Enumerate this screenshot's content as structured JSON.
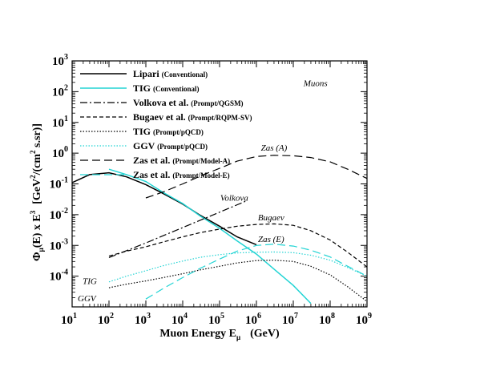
{
  "chart_data": {
    "type": "line",
    "title": "",
    "xlabel": {
      "main": "Muon Energy  E",
      "sub": "μ",
      "unit": "(GeV)"
    },
    "ylabel": {
      "phi": "Φ",
      "phisub": "μ",
      "mid": "(E) x E",
      "exp": "3",
      "unitA": "[GeV",
      "unitExp1": "2",
      "unitB": "/(cm",
      "unitExp2": "2",
      "unitC": " s.sr)]"
    },
    "xscale": "log",
    "yscale": "log",
    "xlim": [
      10,
      1000000000
    ],
    "ylim": [
      1e-05,
      1000
    ],
    "grid": false,
    "legend_position": "top-left",
    "x_ticks": [
      {
        "base": "10",
        "exp": "1",
        "value": 10
      },
      {
        "base": "10",
        "exp": "2",
        "value": 100
      },
      {
        "base": "10",
        "exp": "3",
        "value": 1000
      },
      {
        "base": "10",
        "exp": "4",
        "value": 10000
      },
      {
        "base": "10",
        "exp": "5",
        "value": 100000
      },
      {
        "base": "10",
        "exp": "6",
        "value": 1000000
      },
      {
        "base": "10",
        "exp": "7",
        "value": 10000000
      },
      {
        "base": "10",
        "exp": "8",
        "value": 100000000
      },
      {
        "base": "10",
        "exp": "9",
        "value": 1000000000
      }
    ],
    "y_ticks": [
      {
        "base": "10",
        "exp": "-4",
        "value": 0.0001
      },
      {
        "base": "10",
        "exp": "-3",
        "value": 0.001
      },
      {
        "base": "10",
        "exp": "-2",
        "value": 0.01
      },
      {
        "base": "10",
        "exp": "-1",
        "value": 0.1
      },
      {
        "base": "10",
        "exp": "0",
        "value": 1
      },
      {
        "base": "10",
        "exp": "1",
        "value": 10
      },
      {
        "base": "10",
        "exp": "2",
        "value": 100
      },
      {
        "base": "10",
        "exp": "3",
        "value": 1000
      }
    ],
    "annotations": [
      {
        "text": "Muons",
        "color": "#1a1acc",
        "x": 40000000,
        "y": 150
      },
      {
        "text": "Zas (A)",
        "color": "#000000",
        "x": 3000000,
        "y": 1.2
      },
      {
        "text": "Volkova",
        "color": "#000000",
        "x": 250000,
        "y": 0.028
      },
      {
        "text": "Bugaev",
        "color": "#000000",
        "x": 2500000,
        "y": 0.0065
      },
      {
        "text": "Zas (E)",
        "color": "#000000",
        "x": 2500000,
        "y": 0.0013
      },
      {
        "text": "TIG",
        "color": "#000000",
        "x": 30,
        "y": 5.5e-05
      },
      {
        "text": "GGV",
        "color": "#000000",
        "x": 25,
        "y": 1.5e-05
      }
    ],
    "series": [
      {
        "name": "Lipari",
        "tag": "(Conventional)",
        "color": "#000000",
        "dash": "",
        "width": 1.5,
        "x": [
          10,
          30,
          100,
          300,
          1000,
          3000,
          10000,
          30000,
          100000,
          300000,
          1000000
        ],
        "y": [
          0.11,
          0.2,
          0.23,
          0.17,
          0.095,
          0.048,
          0.022,
          0.0095,
          0.0042,
          0.0019,
          0.00105
        ]
      },
      {
        "name": "TIG",
        "tag": "(Conventional)",
        "color": "#22d4d4",
        "dash": "",
        "width": 1.5,
        "x": [
          100,
          300,
          1000,
          3000,
          10000,
          30000,
          100000,
          300000,
          1000000,
          3000000,
          10000000,
          30000000
        ],
        "y": [
          0.3,
          0.2,
          0.12,
          0.052,
          0.023,
          0.009,
          0.0036,
          0.0014,
          0.00052,
          0.00017,
          5e-05,
          1.3e-05
        ]
      },
      {
        "name": "Volkova et al.",
        "tag": "(Prompt/QGSM)",
        "color": "#000000",
        "dash": "9,3,2,3",
        "width": 1.2,
        "x": [
          100,
          1000,
          10000,
          100000,
          500000
        ],
        "y": [
          0.0004,
          0.0012,
          0.0038,
          0.012,
          0.027
        ]
      },
      {
        "name": "Bugaev et al.",
        "tag": "(Prompt/RQPM-SV)",
        "color": "#000000",
        "dash": "5,3",
        "width": 1.2,
        "x": [
          100,
          300,
          1000,
          3000,
          10000,
          30000,
          100000,
          300000,
          1000000,
          3000000,
          10000000,
          30000000,
          100000000,
          300000000,
          1000000000
        ],
        "y": [
          0.00045,
          0.00065,
          0.0009,
          0.0013,
          0.0019,
          0.0026,
          0.0034,
          0.0042,
          0.0048,
          0.005,
          0.0045,
          0.003,
          0.0015,
          0.0006,
          0.0002
        ]
      },
      {
        "name": "TIG",
        "tag": "(Prompt/pQCD)",
        "color": "#000000",
        "dash": "1.5,2",
        "width": 1.2,
        "x": [
          100,
          300,
          1000,
          3000,
          10000,
          30000,
          100000,
          300000,
          1000000,
          3000000,
          10000000,
          30000000,
          100000000,
          300000000,
          1000000000
        ],
        "y": [
          4.2e-05,
          5.5e-05,
          7e-05,
          9e-05,
          0.00012,
          0.00016,
          0.00021,
          0.00027,
          0.00032,
          0.00033,
          0.0003,
          0.00021,
          0.00011,
          4.5e-05,
          1.5e-05
        ]
      },
      {
        "name": "GGV",
        "tag": "(Prompt/pQCD)",
        "color": "#22d4d4",
        "dash": "1.5,2",
        "width": 1.2,
        "x": [
          100,
          300,
          1000,
          3000,
          10000,
          30000,
          100000,
          300000,
          1000000,
          3000000,
          10000000,
          30000000,
          100000000,
          300000000,
          1000000000
        ],
        "y": [
          6.5e-05,
          0.0001,
          0.00015,
          0.00022,
          0.00031,
          0.00041,
          0.0005,
          0.00057,
          0.0006,
          0.00061,
          0.00058,
          0.00048,
          0.00033,
          0.00019,
          0.0001
        ]
      },
      {
        "name": "Zas et al.",
        "tag": "(Prompt/Model-A)",
        "color": "#000000",
        "dash": "10,5",
        "width": 1.2,
        "x": [
          1000,
          3000,
          10000,
          30000,
          100000,
          300000,
          1000000,
          3000000,
          10000000,
          30000000,
          100000000,
          300000000,
          1000000000
        ],
        "y": [
          0.035,
          0.055,
          0.1,
          0.18,
          0.32,
          0.55,
          0.78,
          0.85,
          0.82,
          0.72,
          0.52,
          0.3,
          0.15
        ]
      },
      {
        "name": "Zas et al.",
        "tag": "(Prompt/Model-E)",
        "color": "#22d4d4",
        "dash": "10,5",
        "width": 1.2,
        "x": [
          1000,
          3000,
          10000,
          30000,
          100000,
          300000,
          1000000,
          3000000,
          10000000,
          30000000,
          100000000,
          300000000,
          1000000000
        ],
        "y": [
          1.8e-05,
          4e-05,
          9e-05,
          0.00018,
          0.00036,
          0.00065,
          0.001,
          0.0011,
          0.00095,
          0.0007,
          0.00042,
          0.00021,
          0.0001
        ]
      }
    ]
  }
}
